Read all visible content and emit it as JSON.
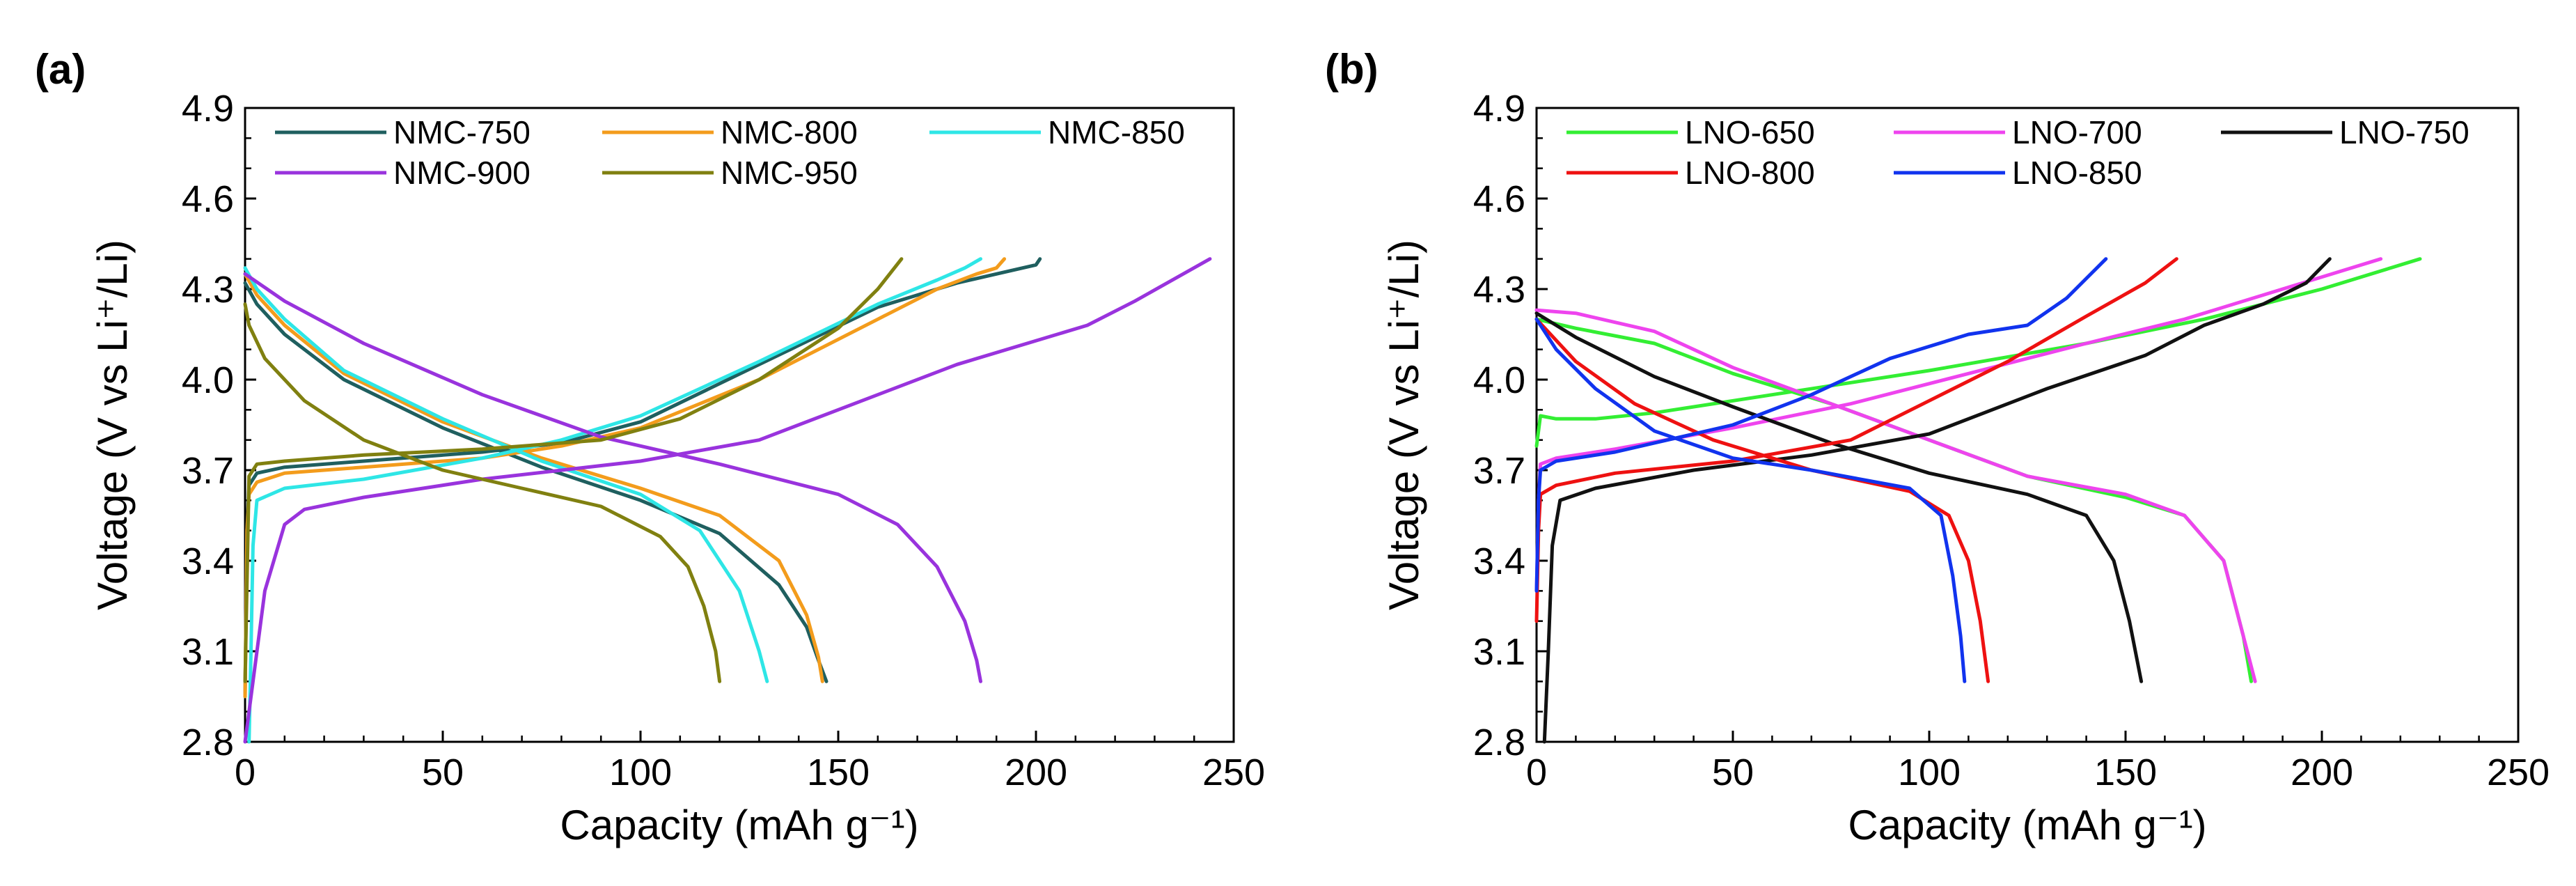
{
  "chart_data": [
    {
      "type": "line",
      "panel_label": "(a)",
      "title": "",
      "xlabel": "Capacity (mAh g⁻¹)",
      "ylabel": "Voltage (V vs Li⁺/Li)",
      "xlim": [
        0,
        250
      ],
      "ylim": [
        2.8,
        4.9
      ],
      "xticks": [
        0,
        50,
        100,
        150,
        200,
        250
      ],
      "yticks": [
        2.8,
        3.1,
        3.4,
        3.7,
        4.0,
        4.3,
        4.6,
        4.9
      ],
      "ytick_labels": [
        "2.8",
        "3.1",
        "3.4",
        "3.7",
        "4.0",
        "4.3",
        "4.6",
        "4.9"
      ],
      "grid": false,
      "legend_position": "top",
      "series": [
        {
          "name": "NMC-750",
          "color": "#1f5f5f",
          "charge": {
            "x": [
              0,
              0.5,
              1,
              3,
              10,
              30,
              60,
              80,
              100,
              130,
              160,
              180,
              190,
              200,
              201
            ],
            "y": [
              2.95,
              3.5,
              3.65,
              3.69,
              3.71,
              3.73,
              3.76,
              3.79,
              3.86,
              4.05,
              4.24,
              4.32,
              4.35,
              4.38,
              4.4
            ]
          },
          "discharge": {
            "x": [
              0,
              3,
              10,
              25,
              50,
              75,
              100,
              120,
              135,
              142,
              145,
              147
            ],
            "y": [
              4.32,
              4.25,
              4.15,
              4.0,
              3.84,
              3.71,
              3.6,
              3.49,
              3.32,
              3.18,
              3.07,
              3.0
            ]
          }
        },
        {
          "name": "NMC-800",
          "color": "#f39c1c",
          "charge": {
            "x": [
              0,
              0.5,
              1,
              3,
              10,
              30,
              60,
              80,
              100,
              130,
              160,
              175,
              185,
              190,
              192
            ],
            "y": [
              2.95,
              3.5,
              3.62,
              3.66,
              3.69,
              3.71,
              3.74,
              3.78,
              3.84,
              4.0,
              4.2,
              4.3,
              4.35,
              4.37,
              4.4
            ]
          },
          "discharge": {
            "x": [
              0,
              3,
              10,
              25,
              50,
              75,
              100,
              120,
              135,
              142,
              145,
              146
            ],
            "y": [
              4.35,
              4.28,
              4.18,
              4.02,
              3.86,
              3.74,
              3.64,
              3.55,
              3.4,
              3.22,
              3.08,
              3.0
            ]
          }
        },
        {
          "name": "NMC-850",
          "color": "#2ee6e6",
          "charge": {
            "x": [
              1,
              1.5,
              2,
              3,
              10,
              30,
              60,
              80,
              100,
              130,
              160,
              175,
              182,
              186
            ],
            "y": [
              2.8,
              3.1,
              3.45,
              3.6,
              3.64,
              3.67,
              3.74,
              3.8,
              3.88,
              4.06,
              4.25,
              4.33,
              4.37,
              4.4
            ]
          },
          "discharge": {
            "x": [
              0,
              3,
              10,
              25,
              50,
              75,
              100,
              115,
              125,
              130,
              132
            ],
            "y": [
              4.37,
              4.3,
              4.2,
              4.03,
              3.87,
              3.73,
              3.62,
              3.5,
              3.3,
              3.1,
              3.0
            ]
          }
        },
        {
          "name": "NMC-900",
          "color": "#9933dd",
          "charge": {
            "x": [
              0,
              2,
              5,
              10,
              15,
              30,
              60,
              100,
              130,
              150,
              180,
              213,
              225,
              244
            ],
            "y": [
              2.8,
              3.0,
              3.3,
              3.52,
              3.57,
              3.61,
              3.67,
              3.73,
              3.8,
              3.9,
              4.05,
              4.18,
              4.26,
              4.4
            ]
          },
          "discharge": {
            "x": [
              0,
              10,
              30,
              60,
              90,
              120,
              150,
              165,
              175,
              182,
              185,
              186
            ],
            "y": [
              4.35,
              4.26,
              4.12,
              3.95,
              3.81,
              3.72,
              3.62,
              3.52,
              3.38,
              3.2,
              3.07,
              3.0
            ]
          }
        },
        {
          "name": "NMC-950",
          "color": "#808010",
          "charge": {
            "x": [
              0,
              1,
              3,
              10,
              30,
              60,
              90,
              110,
              130,
              150,
              160,
              166
            ],
            "y": [
              3.0,
              3.68,
              3.72,
              3.73,
              3.75,
              3.77,
              3.8,
              3.87,
              4.0,
              4.17,
              4.3,
              4.4
            ]
          },
          "discharge": {
            "x": [
              0,
              1,
              5,
              15,
              30,
              50,
              70,
              90,
              105,
              112,
              116,
              119,
              120
            ],
            "y": [
              4.25,
              4.18,
              4.07,
              3.93,
              3.8,
              3.7,
              3.64,
              3.58,
              3.48,
              3.38,
              3.25,
              3.1,
              3.0
            ]
          }
        }
      ]
    },
    {
      "type": "line",
      "panel_label": "(b)",
      "title": "",
      "xlabel": "Capacity (mAh g⁻¹)",
      "ylabel": "Voltage (V vs Li⁺/Li)",
      "xlim": [
        0,
        250
      ],
      "ylim": [
        2.8,
        4.9
      ],
      "xticks": [
        0,
        50,
        100,
        150,
        200,
        250
      ],
      "yticks": [
        2.8,
        3.1,
        3.4,
        3.7,
        4.0,
        4.3,
        4.6,
        4.9
      ],
      "ytick_labels": [
        "2.8",
        "3.1",
        "3.4",
        "3.7",
        "4.0",
        "4.3",
        "4.6",
        "4.9"
      ],
      "grid": false,
      "legend_position": "top",
      "series": [
        {
          "name": "LNO-650",
          "color": "#33ee33",
          "charge": {
            "x": [
              0,
              1,
              5,
              15,
              30,
              60,
              100,
              140,
              170,
              200,
              225
            ],
            "y": [
              3.78,
              3.88,
              3.87,
              3.87,
              3.89,
              3.95,
              4.03,
              4.12,
              4.2,
              4.3,
              4.4
            ]
          },
          "discharge": {
            "x": [
              0,
              10,
              30,
              50,
              75,
              100,
              125,
              150,
              165,
              175,
              180,
              182
            ],
            "y": [
              4.2,
              4.17,
              4.12,
              4.02,
              3.92,
              3.8,
              3.68,
              3.61,
              3.55,
              3.4,
              3.15,
              3.0
            ]
          }
        },
        {
          "name": "LNO-700",
          "color": "#ee44ee",
          "charge": {
            "x": [
              0,
              0.5,
              1,
              5,
              20,
              50,
              80,
              110,
              140,
              165,
              190,
              215
            ],
            "y": [
              3.3,
              3.6,
              3.72,
              3.74,
              3.77,
              3.84,
              3.92,
              4.02,
              4.12,
              4.2,
              4.3,
              4.4
            ]
          },
          "discharge": {
            "x": [
              0,
              10,
              30,
              50,
              75,
              100,
              125,
              150,
              165,
              175,
              180,
              183
            ],
            "y": [
              4.23,
              4.22,
              4.16,
              4.04,
              3.92,
              3.8,
              3.68,
              3.62,
              3.55,
              3.4,
              3.15,
              3.0
            ]
          }
        },
        {
          "name": "LNO-750",
          "color": "#111111",
          "charge": {
            "x": [
              2,
              3,
              4,
              6,
              15,
              40,
              70,
              100,
              130,
              155,
              170,
              185,
              196,
              202
            ],
            "y": [
              2.8,
              3.1,
              3.45,
              3.6,
              3.64,
              3.7,
              3.75,
              3.82,
              3.97,
              4.08,
              4.18,
              4.25,
              4.32,
              4.4
            ]
          },
          "discharge": {
            "x": [
              0,
              10,
              30,
              50,
              75,
              100,
              125,
              140,
              147,
              151,
              154
            ],
            "y": [
              4.22,
              4.14,
              4.01,
              3.91,
              3.79,
              3.69,
              3.62,
              3.55,
              3.4,
              3.2,
              3.0
            ]
          }
        },
        {
          "name": "LNO-800",
          "color": "#ee1111",
          "charge": {
            "x": [
              0,
              0.5,
              1,
              5,
              20,
              50,
              80,
              100,
              120,
              140,
              155,
              163
            ],
            "y": [
              3.2,
              3.5,
              3.62,
              3.65,
              3.69,
              3.73,
              3.8,
              3.93,
              4.06,
              4.21,
              4.32,
              4.4
            ]
          },
          "discharge": {
            "x": [
              0,
              10,
              25,
              45,
              70,
              95,
              105,
              110,
              113,
              115
            ],
            "y": [
              4.2,
              4.06,
              3.92,
              3.8,
              3.7,
              3.63,
              3.55,
              3.4,
              3.2,
              3.0
            ]
          }
        },
        {
          "name": "LNO-850",
          "color": "#1133ee",
          "charge": {
            "x": [
              0,
              0.5,
              1,
              5,
              20,
              50,
              70,
              90,
              110,
              125,
              135,
              145
            ],
            "y": [
              3.3,
              3.6,
              3.7,
              3.73,
              3.76,
              3.85,
              3.95,
              4.07,
              4.15,
              4.18,
              4.27,
              4.4
            ]
          },
          "discharge": {
            "x": [
              0,
              5,
              15,
              30,
              50,
              70,
              95,
              103,
              106,
              108,
              109
            ],
            "y": [
              4.2,
              4.1,
              3.97,
              3.83,
              3.74,
              3.7,
              3.64,
              3.55,
              3.35,
              3.15,
              3.0
            ]
          }
        }
      ]
    }
  ]
}
